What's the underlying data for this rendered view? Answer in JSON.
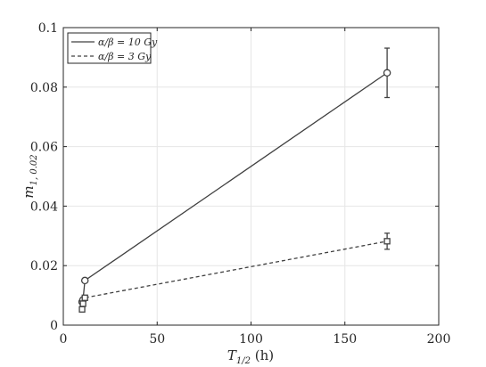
{
  "chart_data": {
    "type": "line",
    "title": "",
    "xlabel": "T",
    "xlabel_sub": "1/2",
    "xlabel_unit": " (h)",
    "ylabel": "m",
    "ylabel_sub": "1, 0.02",
    "xlim": [
      0,
      200
    ],
    "ylim": [
      0,
      0.1
    ],
    "xticks": [
      0,
      50,
      100,
      150,
      200
    ],
    "yticks": [
      0,
      0.02,
      0.04,
      0.06,
      0.08,
      0.1
    ],
    "xtick_labels": [
      "0",
      "50",
      "100",
      "150",
      "200"
    ],
    "ytick_labels": [
      "0",
      "0.02",
      "0.04",
      "0.06",
      "0.08",
      "0.1"
    ],
    "grid": true,
    "legend_position": "top-left",
    "series": [
      {
        "name": "α/β = 10 Gy",
        "line_style": "solid",
        "marker": "circle",
        "color": "#404040",
        "x": [
          10,
          10.5,
          11.5,
          172.5
        ],
        "y": [
          0.0078,
          0.0085,
          0.015,
          0.0848
        ],
        "err": [
          0,
          0,
          0,
          0.0083
        ]
      },
      {
        "name": "α/β = 3 Gy",
        "line_style": "dashed",
        "marker": "square",
        "color": "#404040",
        "x": [
          10,
          10.5,
          11.5,
          172.5
        ],
        "y": [
          0.0053,
          0.0072,
          0.0092,
          0.0282
        ],
        "err": [
          0,
          0,
          0,
          0.0027
        ]
      }
    ]
  }
}
